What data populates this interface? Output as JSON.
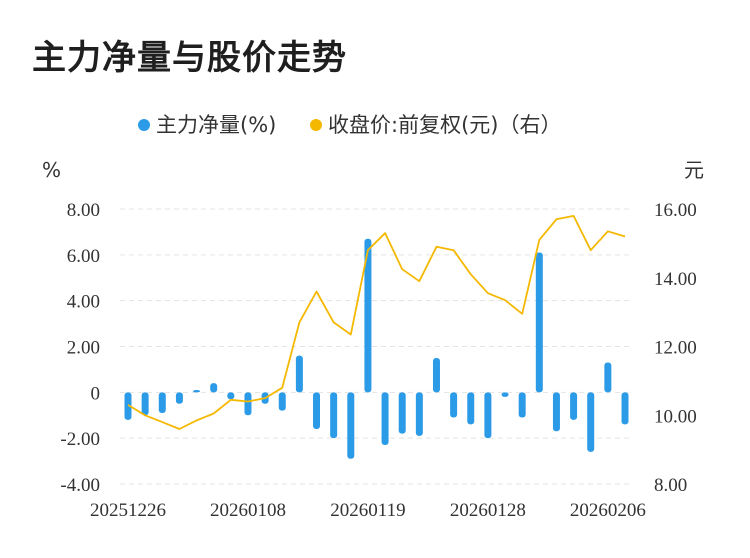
{
  "title": "主力净量与股价走势",
  "chart_data": {
    "type": "bar+line",
    "legend": [
      {
        "name": "主力净量(%)",
        "color": "#2b9be8"
      },
      {
        "name": "收盘价:前复权(元)（右）",
        "color": "#f5b800"
      }
    ],
    "left_unit": "%",
    "right_unit": "元",
    "left_axis": {
      "min": -4,
      "max": 8,
      "ticks": [
        "8.00",
        "6.00",
        "4.00",
        "2.00",
        "0",
        "-2.00",
        "-4.00"
      ],
      "tick_values": [
        8,
        6,
        4,
        2,
        0,
        -2,
        -4
      ]
    },
    "right_axis": {
      "min": 8,
      "max": 16,
      "ticks": [
        "16.00",
        "14.00",
        "12.00",
        "10.00",
        "8.00"
      ],
      "tick_values": [
        16,
        14,
        12,
        10,
        8
      ]
    },
    "x_labels": [
      "20251226",
      "20260108",
      "20260119",
      "20260128",
      "20260206"
    ],
    "x_label_indices": [
      0,
      7,
      14,
      21,
      28
    ],
    "series": [
      {
        "name": "主力净量(%)",
        "kind": "bar",
        "values": [
          -1.2,
          -1.0,
          -0.9,
          -0.5,
          0.1,
          0.4,
          -0.3,
          -1.0,
          -0.5,
          -0.8,
          1.6,
          -1.6,
          -2.0,
          -2.9,
          6.7,
          -2.3,
          -1.8,
          -1.9,
          1.5,
          -1.1,
          -1.4,
          -2.0,
          -0.2,
          -1.1,
          6.1,
          -1.7,
          -1.2,
          -2.6,
          1.3,
          -1.4
        ]
      },
      {
        "name": "收盘价:前复权(元)（右）",
        "kind": "line",
        "values": [
          10.3,
          10.0,
          9.8,
          9.6,
          9.85,
          10.05,
          10.45,
          10.4,
          10.5,
          10.8,
          12.7,
          13.6,
          12.7,
          12.35,
          14.8,
          15.3,
          14.25,
          13.9,
          14.9,
          14.8,
          14.1,
          13.55,
          13.35,
          12.95,
          15.1,
          15.7,
          15.8,
          14.8,
          15.35,
          15.2
        ]
      }
    ]
  }
}
